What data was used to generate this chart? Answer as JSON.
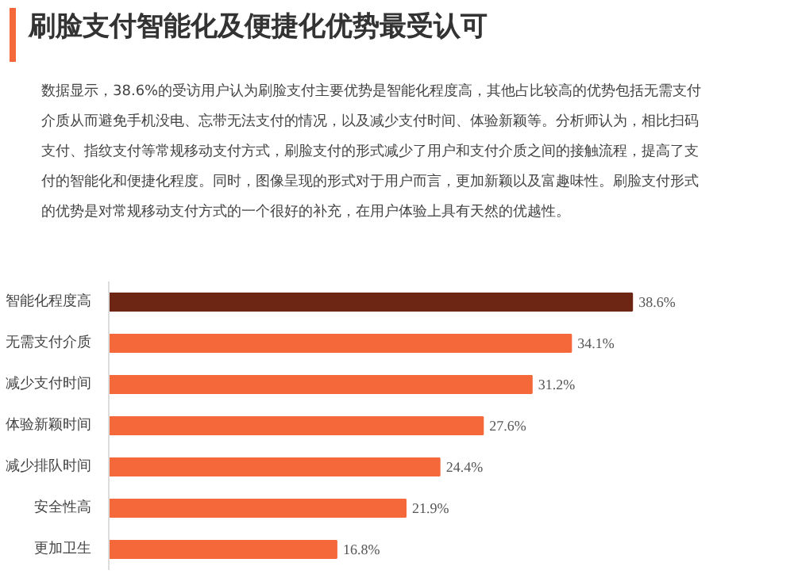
{
  "chart_data": {
    "type": "bar",
    "orientation": "horizontal",
    "title": "刷脸支付智能化及便捷化优势最受认可",
    "subtitle": "数据显示，38.6%的受访用户认为刷脸支付主要优势是智能化程度高，其他占比较高的优势包括无需支付介质从而避免手机没电、忘带无法支付的情况，以及减少支付时间、体验新颖等。分析师认为，相比扫码支付、指纹支付等常规移动支付方式，刷脸支付的形式减少了用户和支付介质之间的接触流程，提高了支付的智能化和便捷化程度。同时，图像呈现的形式对于用户而言，更加新颖以及富趣味性。刷脸支付形式的优势是对常规移动支付方式的一个很好的补充，在用户体验上具有天然的优越性。",
    "categories": [
      "智能化程度高",
      "无需支付介质",
      "减少支付时间",
      "体验新颖时间",
      "减少排队时间",
      "安全性高",
      "更加卫生"
    ],
    "values": [
      38.6,
      34.1,
      31.2,
      27.6,
      24.4,
      21.9,
      16.8
    ],
    "colors": [
      "#6e2614",
      "#f4683a",
      "#f4683a",
      "#f4683a",
      "#f4683a",
      "#f4683a",
      "#f4683a"
    ],
    "value_labels": [
      "38.6%",
      "34.1%",
      "31.2%",
      "27.6%",
      "24.4%",
      "21.9%",
      "16.8%"
    ]
  }
}
